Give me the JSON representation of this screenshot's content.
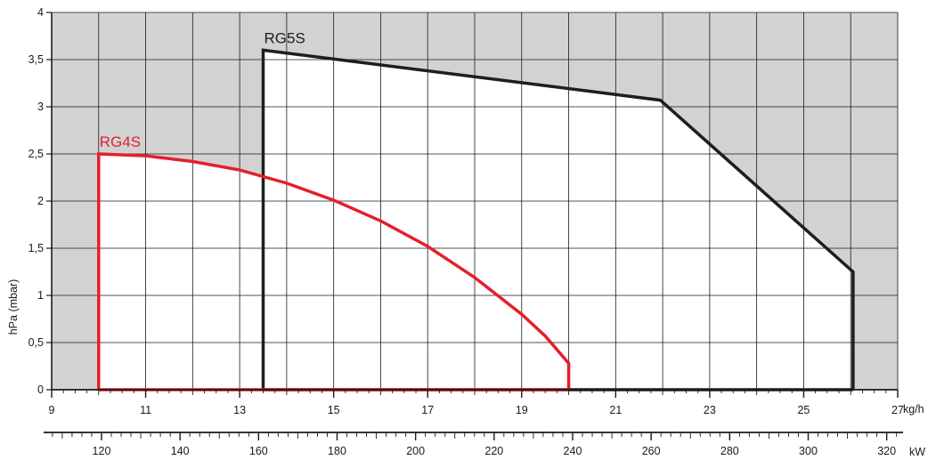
{
  "chart_data": {
    "type": "area",
    "ylabel": "hPa (mbar)",
    "x_unit": "kg/h",
    "x2_unit": "kW",
    "xlim": [
      9,
      27
    ],
    "ylim": [
      0,
      4
    ],
    "x2lim": [
      107.3,
      322.8
    ],
    "x_ticks": [
      9,
      11,
      13,
      15,
      17,
      19,
      21,
      23,
      25,
      27
    ],
    "x_tick_labels": [
      "9",
      "11",
      "13",
      "15",
      "17",
      "19",
      "21",
      "23",
      "25",
      "27"
    ],
    "y_ticks": [
      0,
      0.5,
      1,
      1.5,
      2,
      2.5,
      3,
      3.5,
      4
    ],
    "y_tick_labels": [
      "0",
      "0,5",
      "1",
      "1,5",
      "2",
      "2,5",
      "3",
      "3,5",
      "4"
    ],
    "x2_ticks": [
      120,
      140,
      160,
      180,
      200,
      220,
      240,
      260,
      280,
      300,
      320
    ],
    "x2_tick_labels": [
      "120",
      "140",
      "160",
      "180",
      "200",
      "220",
      "240",
      "260",
      "280",
      "300",
      "320"
    ],
    "grid": true,
    "colors": {
      "outside_area": "#d2d2d3",
      "inside_area": "#ffffff",
      "grid": "#1a1a1a"
    },
    "series": [
      {
        "name": "RG5S",
        "color": "#1e1e1e",
        "x": [
          13.5,
          13.5,
          21.95,
          26.05,
          26.05
        ],
        "y": [
          0,
          3.6,
          3.07,
          1.25,
          0
        ]
      },
      {
        "name": "RG4S",
        "color": "#e3202a",
        "x": [
          10,
          10,
          11,
          12,
          13,
          14,
          15,
          16,
          17,
          18,
          19,
          19.5,
          20,
          20
        ],
        "y": [
          0,
          2.5,
          2.48,
          2.42,
          2.33,
          2.19,
          2.01,
          1.79,
          1.52,
          1.19,
          0.8,
          0.57,
          0.28,
          0
        ]
      }
    ]
  }
}
